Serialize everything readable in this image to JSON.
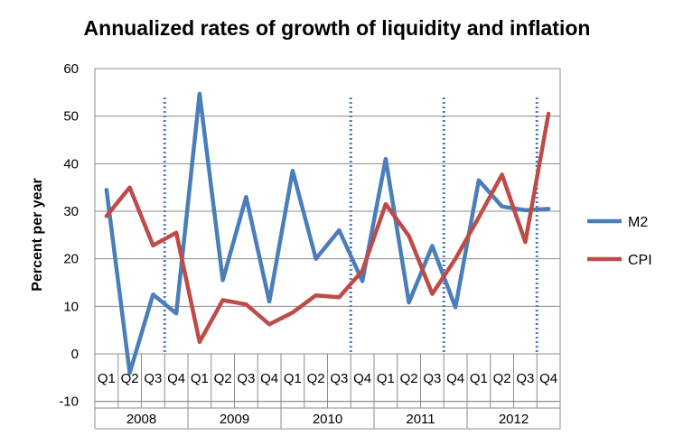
{
  "chart_data": {
    "type": "line",
    "title": "Annualized rates of growth of liquidity and inflation",
    "xlabel": "",
    "ylabel": "Percent per year",
    "ylim": [
      -10,
      60
    ],
    "yticks": [
      -10,
      0,
      10,
      20,
      30,
      40,
      50,
      60
    ],
    "grid": true,
    "legend_position": "right",
    "quarter_labels": [
      "Q1",
      "Q2",
      "Q3",
      "Q4",
      "Q1",
      "Q2",
      "Q3",
      "Q4",
      "Q1",
      "Q2",
      "Q3",
      "Q4",
      "Q1",
      "Q2",
      "Q3",
      "Q4",
      "Q1",
      "Q2",
      "Q3",
      "Q4"
    ],
    "years": [
      "2008",
      "2009",
      "2010",
      "2011",
      "2012"
    ],
    "vertical_markers_after_index": [
      2.5,
      10.5,
      14.5,
      18.5
    ],
    "series": [
      {
        "name": "M2",
        "color": "#4a7ebb",
        "values": [
          34.5,
          -4,
          12.5,
          8.5,
          54.7,
          15.5,
          33,
          11,
          38.5,
          20,
          26,
          15.3,
          41,
          10.8,
          22.7,
          9.8,
          36.5,
          31,
          30.2,
          30.5
        ]
      },
      {
        "name": "CPI",
        "color": "#be4b48",
        "values": [
          29,
          35,
          22.8,
          25.5,
          2.5,
          11.3,
          10.4,
          6.2,
          8.7,
          12.3,
          11.9,
          17.5,
          31.5,
          24.8,
          12.6,
          20,
          28.7,
          37.7,
          23.5,
          50.5
        ]
      }
    ]
  }
}
